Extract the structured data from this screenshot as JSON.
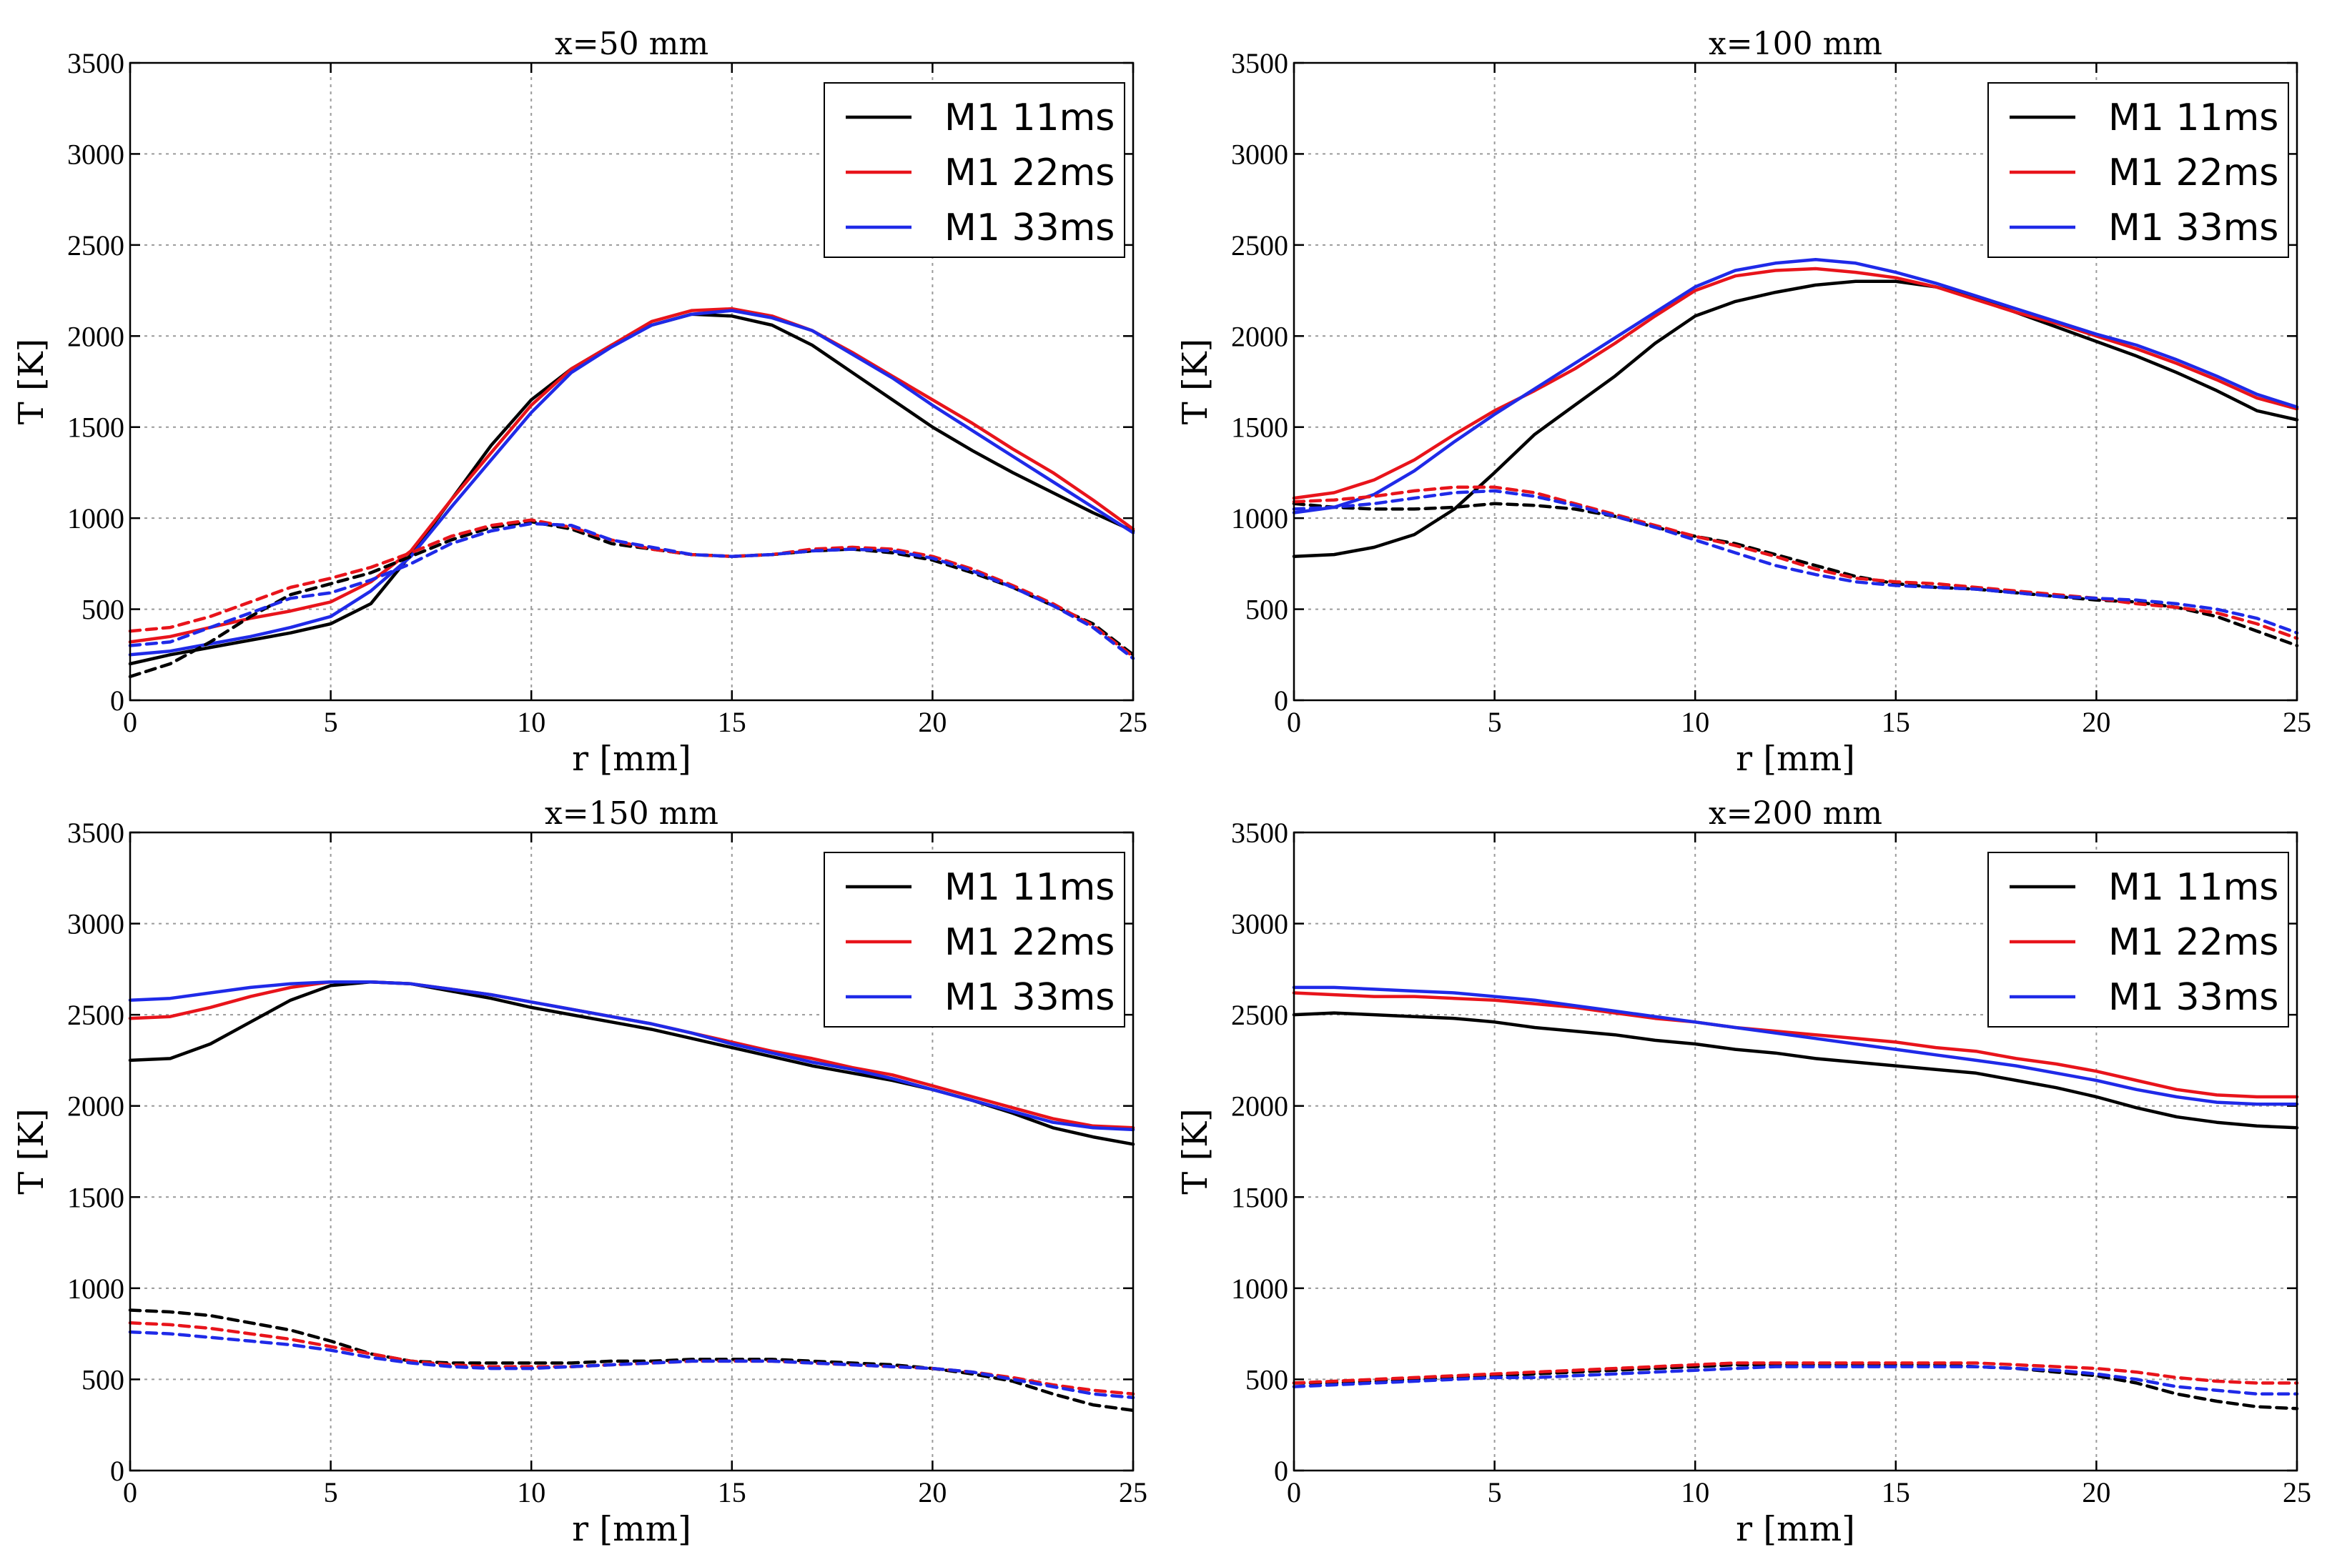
{
  "colors": {
    "black": "#000000",
    "red": "#e8141b",
    "blue": "#1f2ae8"
  },
  "chart_data": [
    {
      "type": "line",
      "title": "x=50 mm",
      "xlabel": "r [mm]",
      "ylabel": "T [K]",
      "xlim": [
        0,
        25
      ],
      "ylim": [
        0,
        3500
      ],
      "xticks": [
        "0",
        "5",
        "10",
        "15",
        "20",
        "25"
      ],
      "yticks": [
        "0",
        "500",
        "1000",
        "1500",
        "2000",
        "2500",
        "3000",
        "3500"
      ],
      "grid": true,
      "legend": "top-right",
      "legend_entries": [
        "M1 11ms",
        "M1 22ms",
        "M1 33ms"
      ],
      "x": [
        0,
        1,
        2,
        3,
        4,
        5,
        6,
        7,
        8,
        9,
        10,
        11,
        12,
        13,
        14,
        15,
        16,
        17,
        18,
        19,
        20,
        21,
        22,
        23,
        24,
        25
      ],
      "series": [
        {
          "name": "M1 11ms",
          "style": "solid",
          "color": "black",
          "values": [
            200,
            250,
            290,
            330,
            370,
            420,
            530,
            800,
            1100,
            1400,
            1650,
            1820,
            1950,
            2060,
            2120,
            2110,
            2060,
            1950,
            1800,
            1650,
            1500,
            1370,
            1250,
            1140,
            1030,
            930
          ]
        },
        {
          "name": "M1 22ms",
          "style": "solid",
          "color": "red",
          "values": [
            320,
            350,
            400,
            450,
            490,
            540,
            650,
            820,
            1100,
            1360,
            1620,
            1820,
            1950,
            2080,
            2140,
            2150,
            2110,
            2030,
            1910,
            1780,
            1650,
            1520,
            1380,
            1250,
            1100,
            940
          ]
        },
        {
          "name": "M1 33ms",
          "style": "solid",
          "color": "blue",
          "values": [
            250,
            270,
            310,
            350,
            400,
            460,
            600,
            790,
            1060,
            1320,
            1580,
            1800,
            1940,
            2060,
            2120,
            2140,
            2100,
            2030,
            1900,
            1770,
            1620,
            1480,
            1340,
            1200,
            1060,
            920
          ]
        },
        {
          "name": "M1 11ms dashed",
          "style": "dashed",
          "color": "black",
          "values": [
            130,
            200,
            320,
            460,
            580,
            640,
            700,
            790,
            880,
            950,
            980,
            940,
            860,
            830,
            800,
            790,
            800,
            820,
            830,
            810,
            770,
            700,
            620,
            520,
            420,
            250
          ]
        },
        {
          "name": "M1 22ms dashed",
          "style": "dashed",
          "color": "red",
          "values": [
            380,
            400,
            460,
            540,
            620,
            670,
            730,
            810,
            900,
            960,
            990,
            950,
            880,
            830,
            800,
            790,
            800,
            830,
            840,
            830,
            790,
            720,
            630,
            530,
            410,
            240
          ]
        },
        {
          "name": "M1 33ms dashed",
          "style": "dashed",
          "color": "blue",
          "values": [
            300,
            320,
            400,
            480,
            560,
            590,
            660,
            750,
            860,
            930,
            970,
            960,
            880,
            840,
            800,
            790,
            800,
            820,
            830,
            820,
            780,
            710,
            620,
            520,
            400,
            230
          ]
        }
      ]
    },
    {
      "type": "line",
      "title": "x=100 mm",
      "xlabel": "r [mm]",
      "ylabel": "T [K]",
      "xlim": [
        0,
        25
      ],
      "ylim": [
        0,
        3500
      ],
      "xticks": [
        "0",
        "5",
        "10",
        "15",
        "20",
        "25"
      ],
      "yticks": [
        "0",
        "500",
        "1000",
        "1500",
        "2000",
        "2500",
        "3000",
        "3500"
      ],
      "grid": true,
      "legend": "top-right",
      "legend_entries": [
        "M1 11ms",
        "M1 22ms",
        "M1 33ms"
      ],
      "x": [
        0,
        1,
        2,
        3,
        4,
        5,
        6,
        7,
        8,
        9,
        10,
        11,
        12,
        13,
        14,
        15,
        16,
        17,
        18,
        19,
        20,
        21,
        22,
        23,
        24,
        25
      ],
      "series": [
        {
          "name": "M1 11ms",
          "style": "solid",
          "color": "black",
          "values": [
            790,
            800,
            840,
            910,
            1050,
            1250,
            1460,
            1620,
            1780,
            1960,
            2110,
            2190,
            2240,
            2280,
            2300,
            2300,
            2270,
            2210,
            2130,
            2050,
            1970,
            1890,
            1800,
            1700,
            1590,
            1540
          ]
        },
        {
          "name": "M1 22ms",
          "style": "solid",
          "color": "red",
          "values": [
            1110,
            1140,
            1210,
            1320,
            1460,
            1590,
            1700,
            1820,
            1960,
            2110,
            2250,
            2330,
            2360,
            2370,
            2350,
            2320,
            2270,
            2200,
            2130,
            2070,
            2000,
            1930,
            1850,
            1760,
            1660,
            1600
          ]
        },
        {
          "name": "M1 33ms",
          "style": "solid",
          "color": "blue",
          "values": [
            1030,
            1060,
            1130,
            1260,
            1420,
            1570,
            1710,
            1850,
            1990,
            2130,
            2270,
            2360,
            2400,
            2420,
            2400,
            2350,
            2290,
            2220,
            2150,
            2080,
            2010,
            1950,
            1870,
            1780,
            1680,
            1610
          ]
        },
        {
          "name": "M1 11ms dashed",
          "style": "dashed",
          "color": "black",
          "values": [
            1080,
            1060,
            1050,
            1050,
            1060,
            1080,
            1070,
            1050,
            1010,
            950,
            900,
            860,
            800,
            740,
            680,
            640,
            620,
            610,
            590,
            570,
            550,
            540,
            510,
            460,
            380,
            300
          ]
        },
        {
          "name": "M1 22ms dashed",
          "style": "dashed",
          "color": "red",
          "values": [
            1090,
            1100,
            1120,
            1150,
            1170,
            1170,
            1140,
            1080,
            1020,
            960,
            900,
            850,
            790,
            720,
            670,
            650,
            640,
            620,
            600,
            580,
            560,
            530,
            510,
            480,
            420,
            340
          ]
        },
        {
          "name": "M1 33ms dashed",
          "style": "dashed",
          "color": "blue",
          "values": [
            1050,
            1060,
            1080,
            1110,
            1140,
            1150,
            1120,
            1070,
            1010,
            950,
            880,
            810,
            740,
            690,
            650,
            630,
            620,
            610,
            590,
            570,
            560,
            550,
            530,
            500,
            450,
            370
          ]
        }
      ]
    },
    {
      "type": "line",
      "title": "x=150 mm",
      "xlabel": "r [mm]",
      "ylabel": "T [K]",
      "xlim": [
        0,
        25
      ],
      "ylim": [
        0,
        3500
      ],
      "xticks": [
        "0",
        "5",
        "10",
        "15",
        "20",
        "25"
      ],
      "yticks": [
        "0",
        "500",
        "1000",
        "1500",
        "2000",
        "2500",
        "3000",
        "3500"
      ],
      "grid": true,
      "legend": "top-right",
      "legend_entries": [
        "M1 11ms",
        "M1 22ms",
        "M1 33ms"
      ],
      "x": [
        0,
        1,
        2,
        3,
        4,
        5,
        6,
        7,
        8,
        9,
        10,
        11,
        12,
        13,
        14,
        15,
        16,
        17,
        18,
        19,
        20,
        21,
        22,
        23,
        24,
        25
      ],
      "series": [
        {
          "name": "M1 11ms",
          "style": "solid",
          "color": "black",
          "values": [
            2250,
            2260,
            2340,
            2460,
            2580,
            2660,
            2680,
            2670,
            2630,
            2590,
            2540,
            2500,
            2460,
            2420,
            2370,
            2320,
            2270,
            2220,
            2180,
            2140,
            2090,
            2030,
            1960,
            1880,
            1830,
            1790
          ]
        },
        {
          "name": "M1 22ms",
          "style": "solid",
          "color": "red",
          "values": [
            2480,
            2490,
            2540,
            2600,
            2650,
            2680,
            2680,
            2670,
            2640,
            2610,
            2570,
            2530,
            2490,
            2450,
            2400,
            2350,
            2300,
            2260,
            2210,
            2170,
            2110,
            2050,
            1990,
            1930,
            1890,
            1880
          ]
        },
        {
          "name": "M1 33ms",
          "style": "solid",
          "color": "blue",
          "values": [
            2580,
            2590,
            2620,
            2650,
            2670,
            2680,
            2680,
            2670,
            2640,
            2610,
            2570,
            2530,
            2490,
            2450,
            2400,
            2340,
            2290,
            2240,
            2200,
            2150,
            2090,
            2030,
            1970,
            1910,
            1880,
            1870
          ]
        },
        {
          "name": "M1 11ms dashed",
          "style": "dashed",
          "color": "black",
          "values": [
            880,
            870,
            850,
            810,
            770,
            710,
            640,
            600,
            590,
            590,
            590,
            590,
            600,
            600,
            610,
            610,
            610,
            600,
            590,
            580,
            560,
            530,
            490,
            420,
            360,
            330
          ]
        },
        {
          "name": "M1 22ms dashed",
          "style": "dashed",
          "color": "red",
          "values": [
            810,
            800,
            780,
            750,
            720,
            680,
            640,
            600,
            580,
            570,
            570,
            570,
            580,
            590,
            600,
            600,
            600,
            590,
            580,
            570,
            560,
            540,
            510,
            470,
            440,
            420
          ]
        },
        {
          "name": "M1 33ms dashed",
          "style": "dashed",
          "color": "blue",
          "values": [
            760,
            750,
            730,
            710,
            690,
            660,
            620,
            590,
            570,
            560,
            560,
            570,
            580,
            590,
            600,
            600,
            600,
            590,
            580,
            570,
            560,
            540,
            500,
            460,
            420,
            400
          ]
        }
      ]
    },
    {
      "type": "line",
      "title": "x=200 mm",
      "xlabel": "r [mm]",
      "ylabel": "T [K]",
      "xlim": [
        0,
        25
      ],
      "ylim": [
        0,
        3500
      ],
      "xticks": [
        "0",
        "5",
        "10",
        "15",
        "20",
        "25"
      ],
      "yticks": [
        "0",
        "500",
        "1000",
        "1500",
        "2000",
        "2500",
        "3000",
        "3500"
      ],
      "grid": true,
      "legend": "top-right",
      "legend_entries": [
        "M1 11ms",
        "M1 22ms",
        "M1 33ms"
      ],
      "x": [
        0,
        1,
        2,
        3,
        4,
        5,
        6,
        7,
        8,
        9,
        10,
        11,
        12,
        13,
        14,
        15,
        16,
        17,
        18,
        19,
        20,
        21,
        22,
        23,
        24,
        25
      ],
      "series": [
        {
          "name": "M1 11ms",
          "style": "solid",
          "color": "black",
          "values": [
            2500,
            2510,
            2500,
            2490,
            2480,
            2460,
            2430,
            2410,
            2390,
            2360,
            2340,
            2310,
            2290,
            2260,
            2240,
            2220,
            2200,
            2180,
            2140,
            2100,
            2050,
            1990,
            1940,
            1910,
            1890,
            1880
          ]
        },
        {
          "name": "M1 22ms",
          "style": "solid",
          "color": "red",
          "values": [
            2620,
            2610,
            2600,
            2600,
            2590,
            2580,
            2560,
            2540,
            2510,
            2480,
            2460,
            2430,
            2410,
            2390,
            2370,
            2350,
            2320,
            2300,
            2260,
            2230,
            2190,
            2140,
            2090,
            2060,
            2050,
            2050
          ]
        },
        {
          "name": "M1 33ms",
          "style": "solid",
          "color": "blue",
          "values": [
            2650,
            2650,
            2640,
            2630,
            2620,
            2600,
            2580,
            2550,
            2520,
            2490,
            2460,
            2430,
            2400,
            2370,
            2340,
            2310,
            2280,
            2250,
            2220,
            2180,
            2140,
            2090,
            2050,
            2020,
            2010,
            2010
          ]
        },
        {
          "name": "M1 11ms dashed",
          "style": "dashed",
          "color": "black",
          "values": [
            480,
            480,
            490,
            500,
            510,
            520,
            530,
            540,
            550,
            560,
            570,
            580,
            580,
            580,
            580,
            580,
            580,
            570,
            560,
            540,
            520,
            480,
            420,
            380,
            350,
            340
          ]
        },
        {
          "name": "M1 22ms dashed",
          "style": "dashed",
          "color": "red",
          "values": [
            480,
            490,
            500,
            510,
            520,
            530,
            540,
            550,
            560,
            570,
            580,
            590,
            590,
            590,
            590,
            590,
            590,
            590,
            580,
            570,
            560,
            540,
            510,
            490,
            480,
            480
          ]
        },
        {
          "name": "M1 33ms dashed",
          "style": "dashed",
          "color": "blue",
          "values": [
            460,
            470,
            480,
            490,
            500,
            510,
            510,
            520,
            530,
            540,
            550,
            560,
            570,
            570,
            570,
            570,
            570,
            570,
            560,
            550,
            530,
            500,
            460,
            440,
            420,
            420
          ]
        }
      ]
    }
  ]
}
